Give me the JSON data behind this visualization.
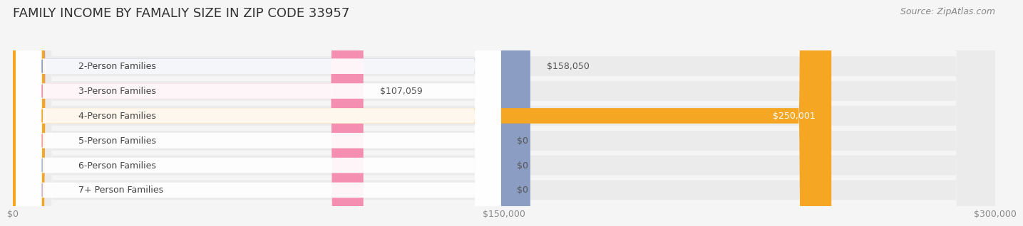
{
  "title": "FAMILY INCOME BY FAMALIY SIZE IN ZIP CODE 33957",
  "source": "Source: ZipAtlas.com",
  "categories": [
    "2-Person Families",
    "3-Person Families",
    "4-Person Families",
    "5-Person Families",
    "6-Person Families",
    "7+ Person Families"
  ],
  "values": [
    158050,
    107059,
    250001,
    0,
    0,
    0
  ],
  "bar_colors": [
    "#8b9dc3",
    "#f48fb1",
    "#f5a623",
    "#f4a0a0",
    "#a8bbd4",
    "#c9b8d4"
  ],
  "label_colors": [
    "#555555",
    "#555555",
    "#ffffff",
    "#555555",
    "#555555",
    "#555555"
  ],
  "value_labels": [
    "$158,050",
    "$107,059",
    "$250,001",
    "$0",
    "$0",
    "$0"
  ],
  "xlim": [
    0,
    300000
  ],
  "xticks": [
    0,
    150000,
    300000
  ],
  "xticklabels": [
    "$0",
    "$150,000",
    "$300,000"
  ],
  "background_color": "#f5f5f5",
  "bar_background_color": "#ebebeb",
  "title_fontsize": 13,
  "source_fontsize": 9,
  "label_fontsize": 9,
  "value_fontsize": 9,
  "tick_fontsize": 9
}
